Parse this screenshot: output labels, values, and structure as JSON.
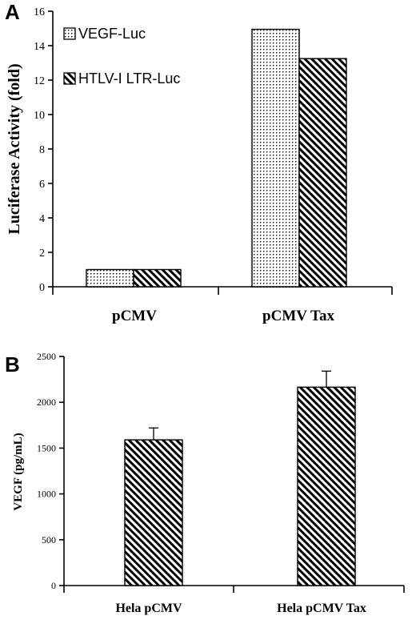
{
  "chart_data": [
    {
      "panel": "A",
      "type": "bar",
      "ylabel": "Luciferase Activity (fold)",
      "yticks": [
        "0",
        "2",
        "4",
        "6",
        "8",
        "10",
        "12",
        "14",
        "16"
      ],
      "ylim": [
        0,
        16
      ],
      "categories": [
        "pCMV",
        "pCMV Tax"
      ],
      "series": [
        {
          "name": "VEGF-Luc",
          "pattern": "dots",
          "values": [
            1.0,
            14.95
          ]
        },
        {
          "name": "HTLV-I LTR-Luc",
          "pattern": "hatch",
          "values": [
            1.0,
            13.25
          ]
        }
      ],
      "legend_position": "top-left"
    },
    {
      "panel": "B",
      "type": "bar",
      "ylabel": "VEGF (pg/mL)",
      "yticks": [
        "0",
        "500",
        "1000",
        "1500",
        "2000",
        "2500"
      ],
      "ylim": [
        0,
        2500
      ],
      "categories": [
        "Hela pCMV",
        "Hela pCMV Tax"
      ],
      "series": [
        {
          "pattern": "hatch",
          "values": [
            1590,
            2165
          ],
          "errors": [
            130,
            175
          ]
        }
      ]
    }
  ]
}
